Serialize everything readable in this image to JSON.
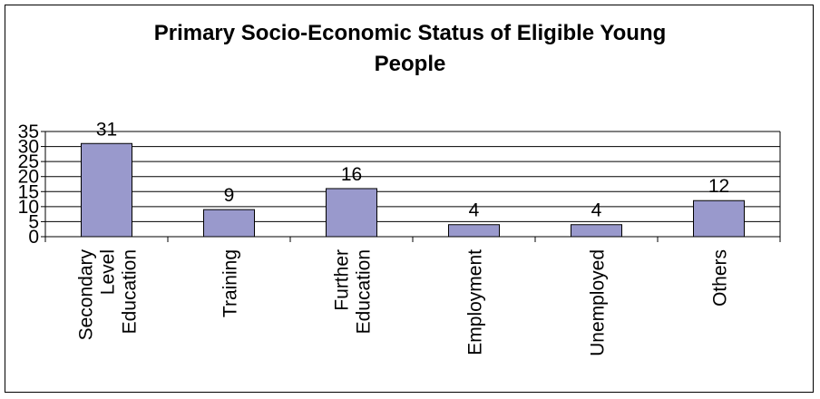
{
  "chart_data": {
    "type": "bar",
    "title_line1": "Primary Socio-Economic Status of Eligible Young",
    "title_line2": "People",
    "categories": [
      [
        "Secondary",
        "Level",
        "Education"
      ],
      [
        "Training"
      ],
      [
        "Further",
        "Education"
      ],
      [
        "Employment"
      ],
      [
        "Unemployed"
      ],
      [
        "Others"
      ]
    ],
    "values": [
      31,
      9,
      16,
      4,
      4,
      12
    ],
    "ylim": [
      0,
      35
    ],
    "yticks": [
      0,
      5,
      10,
      15,
      20,
      25,
      30,
      35
    ],
    "grid": true,
    "bar_color": "#9999cc"
  }
}
